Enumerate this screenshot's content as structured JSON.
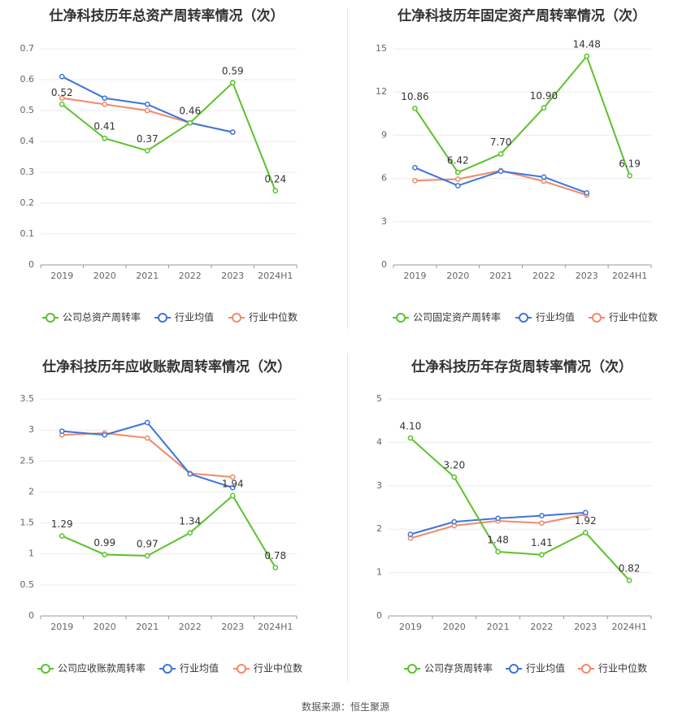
{
  "source_text": "数据来源：恒生聚源",
  "colors": {
    "company": "#5cc12e",
    "avg": "#3f74d9",
    "median": "#f08a6a",
    "grid": "#ebebeb",
    "axis": "#999999"
  },
  "chart_data": [
    {
      "type": "line",
      "title": "仕净科技历年总资产周转率情况（次）",
      "categories": [
        "2019",
        "2020",
        "2021",
        "2022",
        "2023",
        "2024H1"
      ],
      "yticks": [
        "0",
        "0.1",
        "0.2",
        "0.3",
        "0.4",
        "0.5",
        "0.6",
        "0.7"
      ],
      "ylim": [
        0,
        0.7
      ],
      "series": [
        {
          "name": "公司总资产周转率",
          "key": "company",
          "values": [
            0.52,
            0.41,
            0.37,
            0.46,
            0.59,
            0.24
          ],
          "labels": [
            "0.52",
            "0.41",
            "0.37",
            "0.46",
            "0.59",
            "0.24"
          ]
        },
        {
          "name": "行业均值",
          "key": "avg",
          "values": [
            0.61,
            0.54,
            0.52,
            0.46,
            0.43,
            null
          ]
        },
        {
          "name": "行业中位数",
          "key": "median",
          "values": [
            0.54,
            0.52,
            0.5,
            0.46,
            0.43,
            null
          ]
        }
      ]
    },
    {
      "type": "line",
      "title": "仕净科技历年固定资产周转率情况（次）",
      "categories": [
        "2019",
        "2020",
        "2021",
        "2022",
        "2023",
        "2024H1"
      ],
      "yticks": [
        "0",
        "3",
        "6",
        "9",
        "12",
        "15"
      ],
      "ylim": [
        0,
        15
      ],
      "series": [
        {
          "name": "公司固定资产周转率",
          "key": "company",
          "values": [
            10.86,
            6.42,
            7.7,
            10.9,
            14.48,
            6.19
          ],
          "labels": [
            "10.86",
            "6.42",
            "7.70",
            "10.90",
            "14.48",
            "6.19"
          ]
        },
        {
          "name": "行业均值",
          "key": "avg",
          "values": [
            6.75,
            5.5,
            6.5,
            6.1,
            5.0,
            null
          ]
        },
        {
          "name": "行业中位数",
          "key": "median",
          "values": [
            5.85,
            5.95,
            6.55,
            5.8,
            4.85,
            null
          ]
        }
      ]
    },
    {
      "type": "line",
      "title": "仕净科技历年应收账款周转率情况（次）",
      "categories": [
        "2019",
        "2020",
        "2021",
        "2022",
        "2023",
        "2024H1"
      ],
      "yticks": [
        "0",
        "0.5",
        "1",
        "1.5",
        "2",
        "2.5",
        "3",
        "3.5"
      ],
      "ylim": [
        0,
        3.5
      ],
      "series": [
        {
          "name": "公司应收账款周转率",
          "key": "company",
          "values": [
            1.29,
            0.99,
            0.97,
            1.34,
            1.94,
            0.78
          ],
          "labels": [
            "1.29",
            "0.99",
            "0.97",
            "1.34",
            "1.94",
            "0.78"
          ]
        },
        {
          "name": "行业均值",
          "key": "avg",
          "values": [
            2.98,
            2.92,
            3.12,
            2.29,
            2.07,
            null
          ]
        },
        {
          "name": "行业中位数",
          "key": "median",
          "values": [
            2.92,
            2.95,
            2.87,
            2.3,
            2.24,
            null
          ]
        }
      ]
    },
    {
      "type": "line",
      "title": "仕净科技历年存货周转率情况（次）",
      "categories": [
        "2019",
        "2020",
        "2021",
        "2022",
        "2023",
        "2024H1"
      ],
      "yticks": [
        "0",
        "1",
        "2",
        "3",
        "4",
        "5"
      ],
      "ylim": [
        0,
        5
      ],
      "series": [
        {
          "name": "公司存货周转率",
          "key": "company",
          "values": [
            4.1,
            3.2,
            1.48,
            1.41,
            1.92,
            0.82
          ],
          "labels": [
            "4.10",
            "3.20",
            "1.48",
            "1.41",
            "1.92",
            "0.82"
          ]
        },
        {
          "name": "行业均值",
          "key": "avg",
          "values": [
            1.88,
            2.17,
            2.25,
            2.31,
            2.38,
            null
          ]
        },
        {
          "name": "行业中位数",
          "key": "median",
          "values": [
            1.79,
            2.08,
            2.19,
            2.14,
            2.34,
            null
          ]
        }
      ]
    }
  ]
}
